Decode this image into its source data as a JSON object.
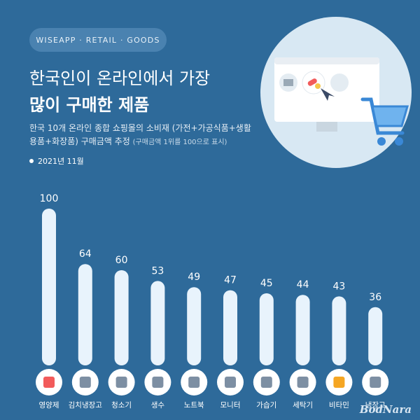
{
  "header": {
    "badge": "WISEAPP · RETAIL · GOODS",
    "title_line1": "한국인이 온라인에서 가장",
    "title_line2": "많이 구매한 제품",
    "subtitle_line1": "한국 10개 온라인 종합 쇼핑몰의 소비재 (가전+가공식품+생활",
    "subtitle_line2": "용품+화장품) 구매금액 추정",
    "subtitle_note": "(구매금액 1위를 100으로 표시)",
    "date": "2021년 11월"
  },
  "watermark": "BodNara",
  "colors": {
    "background": "#2e6a9a",
    "bar": "#e8f3fc",
    "icon_circle": "#ffffff"
  },
  "chart_data": {
    "type": "bar",
    "categories": [
      "영양제",
      "김치냉장고",
      "청소기",
      "생수",
      "노트북",
      "모니터",
      "가습기",
      "세탁기",
      "비타민",
      "냉장고"
    ],
    "values": [
      100,
      64,
      60,
      53,
      49,
      47,
      45,
      44,
      43,
      36
    ],
    "icons": [
      "pill-icon",
      "kimchi-fridge-icon",
      "vacuum-icon",
      "water-bottle-icon",
      "laptop-icon",
      "monitor-icon",
      "humidifier-icon",
      "washer-icon",
      "vitamin-icon",
      "fridge-icon"
    ],
    "title": "",
    "xlabel": "",
    "ylabel": "",
    "ylim": [
      0,
      100
    ],
    "grid": false,
    "legend": "none"
  }
}
